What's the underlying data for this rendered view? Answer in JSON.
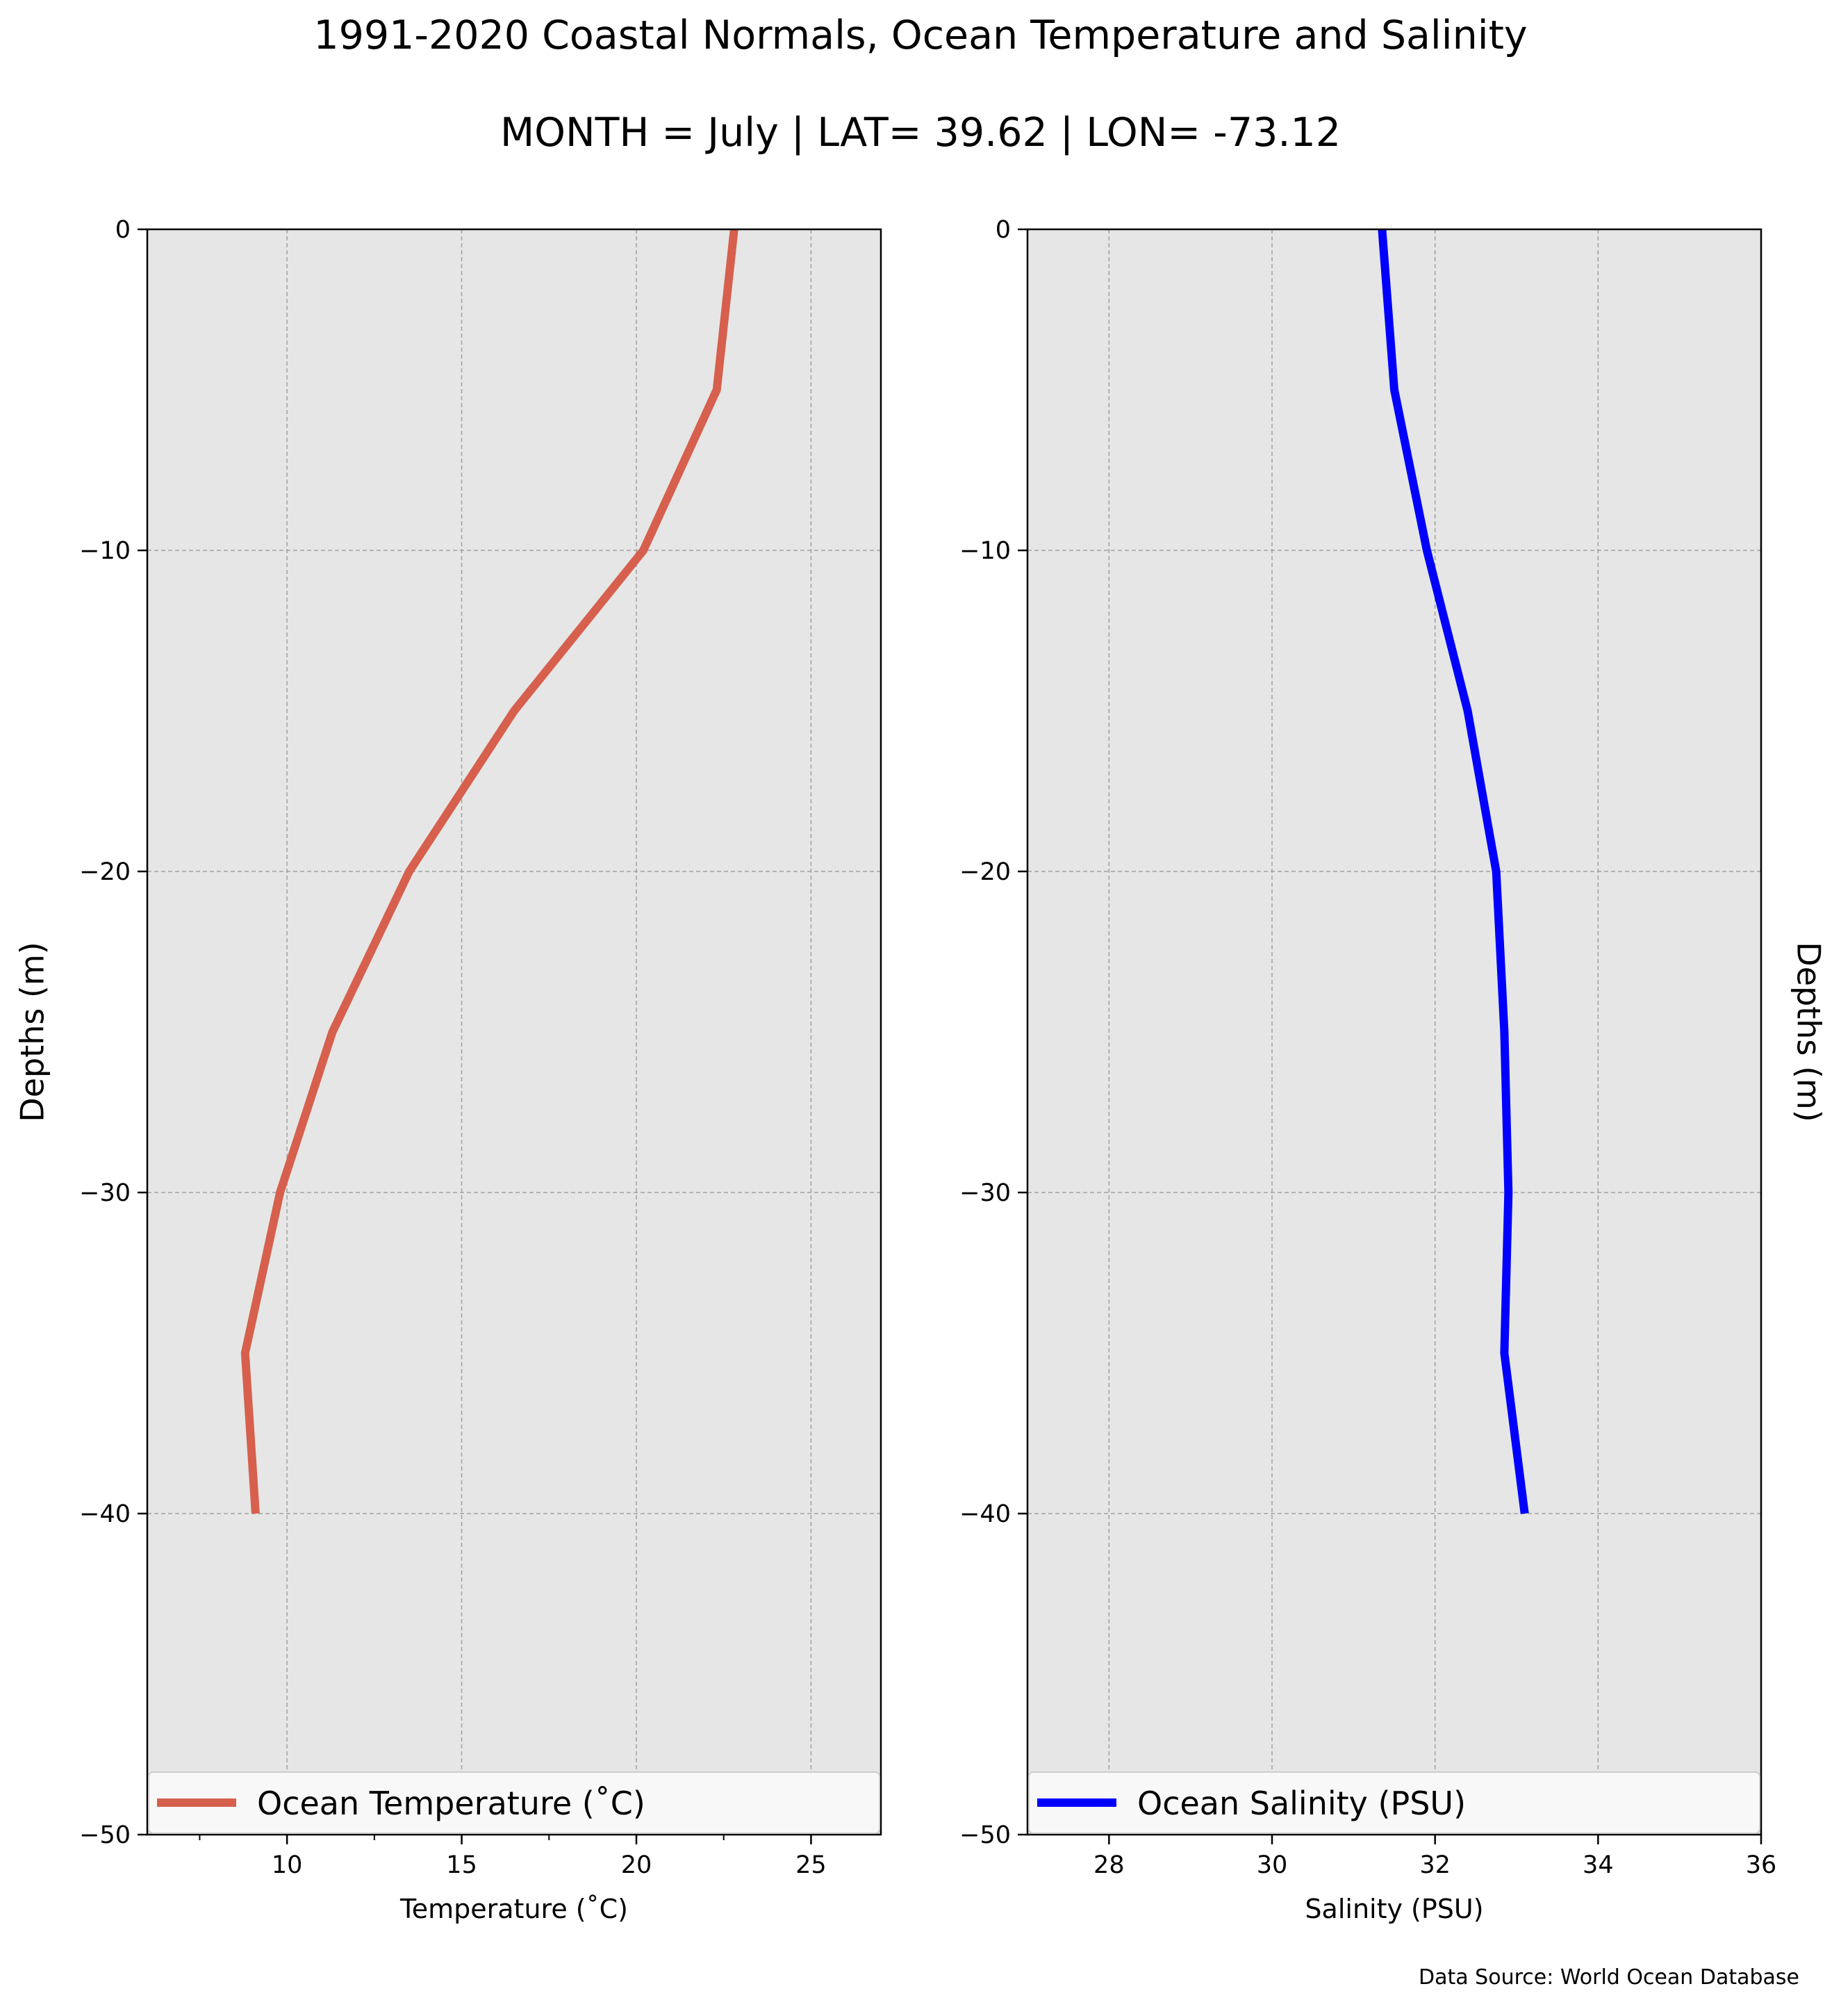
{
  "figure": {
    "title": "1991-2020 Coastal Normals, Ocean Temperature and Salinity",
    "subtitle": "MONTH = July | LAT= 39.62 | LON= -73.12",
    "source": "Data Source: World Ocean Database"
  },
  "colors": {
    "panel_bg": "#e6e6e6",
    "grid": "#a0a0a0",
    "temperature_line": "#d6604d",
    "salinity_line": "#0000ff"
  },
  "chart_data": [
    {
      "type": "line",
      "xlabel": "Temperature ($^\\circ$C)",
      "xlabel_display": "Temperature (˚C)",
      "ylabel": "Depths (m)",
      "xlim": [
        6,
        27
      ],
      "ylim": [
        -50,
        0
      ],
      "xticks": [
        10,
        15,
        20,
        25
      ],
      "yticks": [
        0,
        -10,
        -20,
        -30,
        -40,
        -50
      ],
      "grid": true,
      "legend_position": "bottom",
      "series": [
        {
          "name": "Ocean Temperature (˚C)",
          "x": [
            22.8,
            22.3,
            20.2,
            16.5,
            13.5,
            11.3,
            9.8,
            8.8,
            9.1
          ],
          "y": [
            0,
            -5,
            -10,
            -15,
            -20,
            -25,
            -30,
            -35,
            -40
          ]
        }
      ]
    },
    {
      "type": "line",
      "xlabel": "Salinity (PSU)",
      "ylabel": "Depths (m)",
      "xlim": [
        27,
        36
      ],
      "ylim": [
        -50,
        0
      ],
      "xticks": [
        28,
        30,
        32,
        34,
        36
      ],
      "yticks": [
        0,
        -10,
        -20,
        -30,
        -40,
        -50
      ],
      "grid": true,
      "legend_position": "bottom",
      "series": [
        {
          "name": "Ocean Salinity (PSU)",
          "x": [
            31.35,
            31.5,
            31.9,
            32.4,
            32.75,
            32.85,
            32.9,
            32.85,
            33.1
          ],
          "y": [
            0,
            -5,
            -10,
            -15,
            -20,
            -25,
            -30,
            -35,
            -40
          ]
        }
      ]
    }
  ]
}
